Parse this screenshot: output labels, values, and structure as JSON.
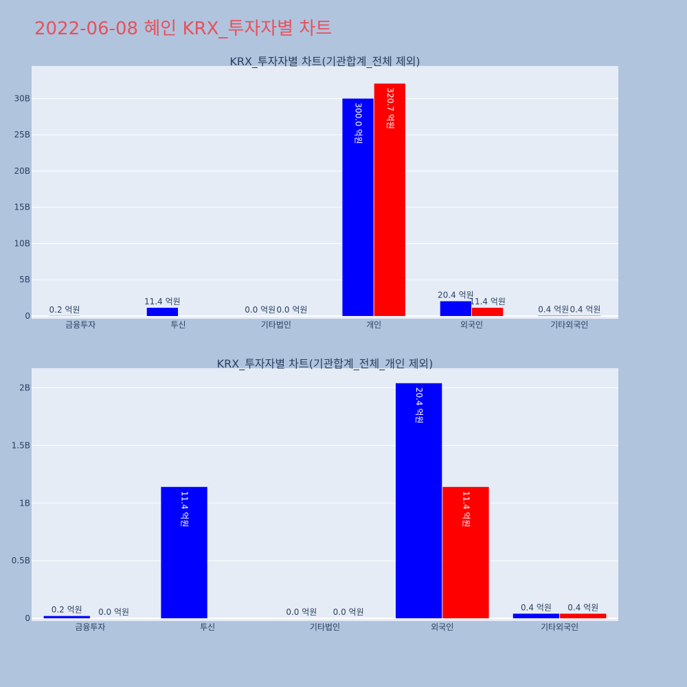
{
  "page_title": "2022-06-08 혜인 KRX_투자자별 차트",
  "colors": {
    "buy": "#0000ff",
    "sell": "#ff0000",
    "title": "#e8505b",
    "plot_bg": "#e5ecf6",
    "page_bg": "#b0c4de"
  },
  "chart_data": [
    {
      "type": "bar",
      "title": "KRX_투자자별 차트(기관합계_전체 제외)",
      "categories": [
        "금융투자",
        "투신",
        "기타법인",
        "개인",
        "외국인",
        "기타외국인"
      ],
      "ylim": [
        0,
        34500000000
      ],
      "yticks": [
        0,
        5000000000,
        10000000000,
        15000000000,
        20000000000,
        25000000000,
        30000000000
      ],
      "ytick_labels": [
        "0",
        "5B",
        "10B",
        "15B",
        "20B",
        "25B",
        "30B"
      ],
      "series": [
        {
          "values": [
            20000000,
            1140000000,
            0,
            30000000000,
            2040000000,
            40000000
          ],
          "labels": [
            "0.2 억원",
            "11.4 억원",
            "0.0 억원",
            "300.0 억원",
            "20.4 억원",
            "0.4 억원"
          ]
        },
        {
          "values": [
            null,
            null,
            0,
            32070000000,
            1140000000,
            40000000
          ],
          "labels": [
            null,
            null,
            "0.0 억원",
            "320.7 억원",
            "11.4 억원",
            "0.4 억원"
          ]
        }
      ]
    },
    {
      "type": "bar",
      "title": "KRX_투자자별 차트(기관합계_전체_개인 제외)",
      "categories": [
        "금융투자",
        "투신",
        "기타법인",
        "외국인",
        "기타외국인"
      ],
      "ylim": [
        0,
        2170000000
      ],
      "yticks": [
        0,
        500000000,
        1000000000,
        1500000000,
        2000000000
      ],
      "ytick_labels": [
        "0",
        "0.5B",
        "1B",
        "1.5B",
        "2B"
      ],
      "series": [
        {
          "values": [
            20000000,
            1140000000,
            0,
            2040000000,
            40000000
          ],
          "labels": [
            "0.2 억원",
            "11.4 억원",
            "0.0 억원",
            "20.4 억원",
            "0.4 억원"
          ]
        },
        {
          "values": [
            0,
            null,
            0,
            1140000000,
            40000000
          ],
          "labels": [
            "0.0 억원",
            null,
            "0.0 억원",
            "11.4 억원",
            "0.4 억원"
          ]
        }
      ]
    }
  ]
}
